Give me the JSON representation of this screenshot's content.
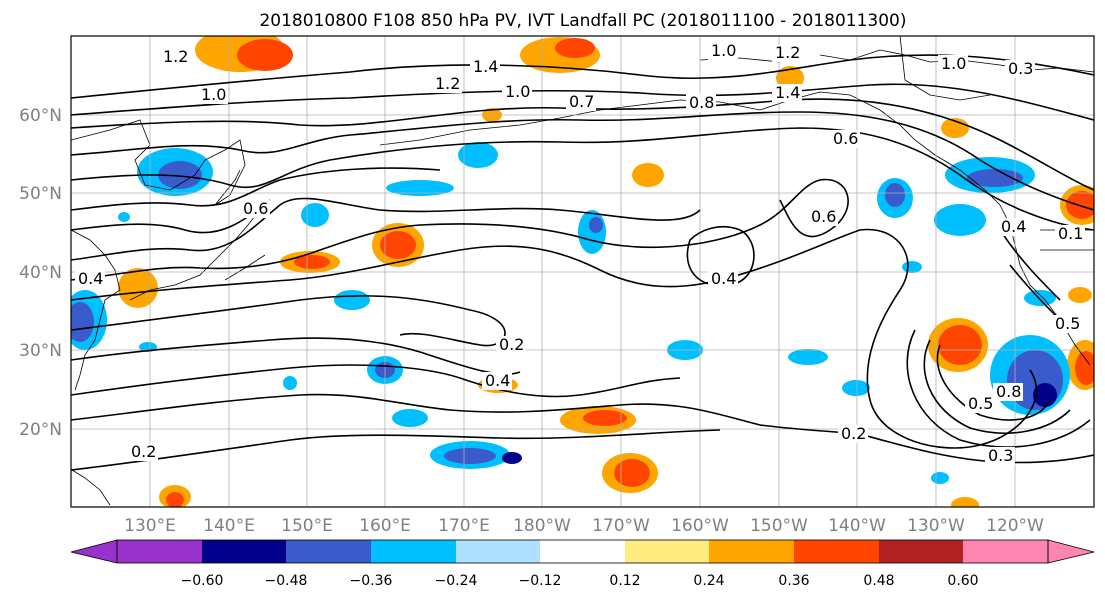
{
  "title": "2018010800 F108 850 hPa PV, IVT Landfall PC (2018011100 - 2018011300)",
  "lat_labels": [
    "60°N",
    "50°N",
    "40°N",
    "30°N",
    "20°N"
  ],
  "lon_labels": [
    "130°E",
    "140°E",
    "150°E",
    "160°E",
    "170°E",
    "180°W",
    "170°W",
    "160°W",
    "150°W",
    "140°W",
    "130°W",
    "120°W"
  ],
  "colorbar": {
    "colors": [
      "#9932cc",
      "#00008b",
      "#3a5bcc",
      "#00bfff",
      "#b0e0ff",
      "#ffffff",
      "#ffeb80",
      "#ffa500",
      "#ff4500",
      "#b22222",
      "#ff86b0"
    ],
    "ticks": [
      "−0.60",
      "−0.48",
      "−0.36",
      "−0.24",
      "−0.12",
      "0.12",
      "0.24",
      "0.36",
      "0.48",
      "0.60"
    ]
  },
  "contour_labels": [
    "1.2",
    "1.0",
    "1.4",
    "1.2",
    "1.0",
    "0.7",
    "0.8",
    "1.0",
    "1.2",
    "1.4",
    "1.0",
    "0.6",
    "0.4",
    "0.6",
    "0.4",
    "0.2",
    "0.4",
    "0.2",
    "0.2",
    "0.3",
    "0.5",
    "0.6",
    "0.8",
    "0.4",
    "0.1",
    "0.3",
    "0.5"
  ]
}
